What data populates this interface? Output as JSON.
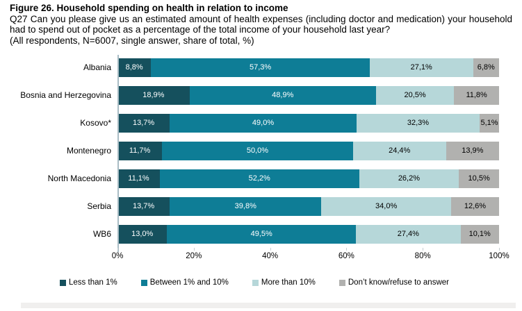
{
  "header": {
    "title": "Figure 26. Household spending on health in relation to income",
    "question": "Q27 Can you please give us an estimated amount of health expenses (including doctor and medication) your household had to spend out of pocket as a percentage of the total income of your household last year?",
    "note": "(All respondents, N=6007, single answer, share of total, %)"
  },
  "chart_data": {
    "type": "bar",
    "orientation": "horizontal-stacked",
    "title": "Household spending on health in relation to income",
    "categories": [
      "Albania",
      "Bosnia and Herzegovina",
      "Kosovo*",
      "Montenegro",
      "North Macedonia",
      "Serbia",
      "WB6"
    ],
    "series": [
      {
        "name": "Less than 1%",
        "color": "#15505d",
        "text_color": "#ffffff",
        "values": [
          8.8,
          18.9,
          13.7,
          11.7,
          11.1,
          13.7,
          13.0
        ],
        "labels": [
          "8,8%",
          "18,9%",
          "13,7%",
          "11,7%",
          "11,1%",
          "13,7%",
          "13,0%"
        ]
      },
      {
        "name": "Between 1% and 10%",
        "color": "#0e7d96",
        "text_color": "#ffffff",
        "values": [
          57.3,
          48.9,
          49.0,
          50.0,
          52.2,
          39.8,
          49.5
        ],
        "labels": [
          "57,3%",
          "48,9%",
          "49,0%",
          "50,0%",
          "52,2%",
          "39,8%",
          "49,5%"
        ]
      },
      {
        "name": "More than 10%",
        "color": "#b6d7d9",
        "text_color": "#000000",
        "values": [
          27.1,
          20.5,
          32.3,
          24.4,
          26.2,
          34.0,
          27.4
        ],
        "labels": [
          "27,1%",
          "20,5%",
          "32,3%",
          "24,4%",
          "26,2%",
          "34,0%",
          "27,4%"
        ]
      },
      {
        "name": "Don’t know/refuse to answer",
        "color": "#b1b1af",
        "text_color": "#000000",
        "values": [
          6.8,
          11.8,
          5.1,
          13.9,
          10.5,
          12.6,
          10.1
        ],
        "labels": [
          "6,8%",
          "11,8%",
          "5,1%",
          "13,9%",
          "10,5%",
          "12,6%",
          "10,1%"
        ]
      }
    ],
    "x_ticks": [
      "0%",
      "20%",
      "40%",
      "60%",
      "80%",
      "100%"
    ],
    "x_tick_positions": [
      0,
      20,
      40,
      60,
      80,
      100
    ],
    "xlim": [
      0,
      100
    ],
    "legend_position": "bottom",
    "grid": false,
    "colors": {
      "axis_line": "#a9bcc4",
      "tick_mark": "#c6cdd1",
      "bottom_strip": "#f0efee"
    }
  }
}
